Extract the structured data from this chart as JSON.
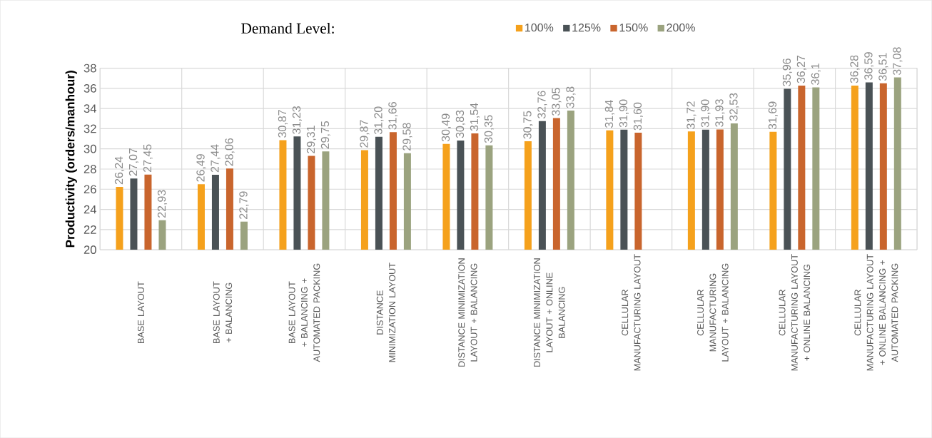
{
  "chart_data": {
    "type": "bar",
    "ylabel": "Productivity (orders/manhour)",
    "legend_title": "Demand Level:",
    "categories": [
      "BASE LAYOUT",
      "BASE LAYOUT + BALANCING",
      "BASE LAYOUT + BALANCING + AUTOMATED PACKING",
      "DISTANCE MINIMIZATION LAYOUT",
      "DISTANCE MINIMIZATION LAYOUT + BALANCING",
      "DISTANCE MINIMIZATION LAYOUT + ONLINE BALANCING",
      "CELLULAR MANUFACTURING LAYOUT",
      "CELLULAR MANUFACTURING LAYOUT + BALANCING",
      "CELLULAR MANUFACTURING LAYOUT + ONLINE BALANCING",
      "CELLULAR MANUFACTURING LAYOUT + ONLINE BALANCING + AUTOMATED PACKING"
    ],
    "series": [
      {
        "name": "100%",
        "color": "#f5a11c",
        "values": [
          26.24,
          26.49,
          30.87,
          29.87,
          30.49,
          30.75,
          31.84,
          31.72,
          31.69,
          36.28
        ],
        "value_labels": [
          "26,24",
          "26,49",
          "30,87",
          "29,87",
          "30,49",
          "30,75",
          "31,84",
          "31,72",
          "31,69",
          "36,28"
        ]
      },
      {
        "name": "125%",
        "color": "#4a5256",
        "values": [
          27.07,
          27.44,
          31.23,
          31.2,
          30.83,
          32.76,
          31.9,
          31.9,
          35.96,
          36.59
        ],
        "value_labels": [
          "27,07",
          "27,44",
          "31,23",
          "31,20",
          "30,83",
          "32,76",
          "31,90",
          "31,90",
          "35,96",
          "36,59"
        ]
      },
      {
        "name": "150%",
        "color": "#c9652d",
        "values": [
          27.45,
          28.06,
          29.31,
          31.66,
          31.54,
          33.05,
          31.6,
          31.93,
          36.27,
          36.51
        ],
        "value_labels": [
          "27,45",
          "28,06",
          "29,31",
          "31,66",
          "31,54",
          "33,05",
          "31,60",
          "31,93",
          "36,27",
          "36,51"
        ]
      },
      {
        "name": "200%",
        "color": "#9ba37f",
        "values": [
          22.93,
          22.79,
          29.75,
          29.58,
          30.35,
          33.8,
          null,
          32.53,
          36.1,
          37.08
        ],
        "value_labels": [
          "22,93",
          "22,79",
          "29,75",
          "29,58",
          "30,35",
          "33,8",
          null,
          "32,53",
          "36,1",
          "37,08"
        ]
      }
    ],
    "ylim": [
      20,
      38
    ],
    "yticks": [
      20,
      22,
      24,
      26,
      28,
      30,
      32,
      34,
      36,
      38
    ],
    "grid": true,
    "legend": "top"
  }
}
